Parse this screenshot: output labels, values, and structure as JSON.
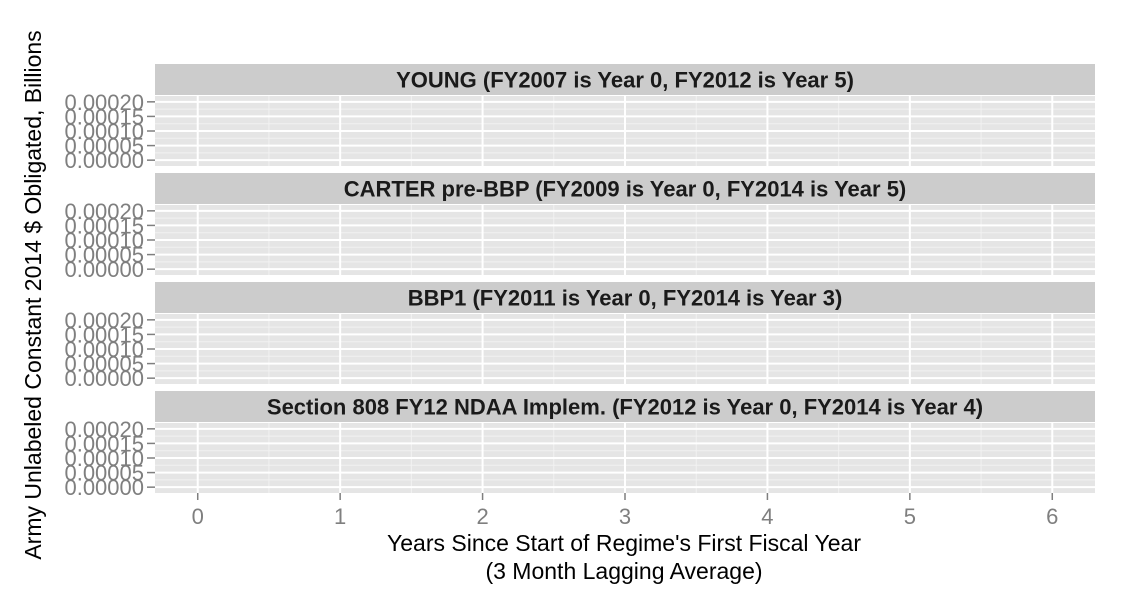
{
  "chart_data": {
    "type": "line",
    "title": "",
    "xlabel": "Years Since Start of Regime's First Fiscal Year",
    "xlabel_sub": "(3 Month Lagging Average)",
    "ylabel": "Army Unlabeled Constant 2014 $ Obligated, Billions",
    "xlim": [
      -0.3,
      6.3
    ],
    "ylim": [
      -2e-05,
      0.00022
    ],
    "x_ticks": [
      0,
      1,
      2,
      3,
      4,
      5,
      6
    ],
    "x_tick_labels": [
      "0",
      "1",
      "2",
      "3",
      "4",
      "5",
      "6"
    ],
    "y_ticks": [
      0.0,
      5e-05,
      0.0001,
      0.00015,
      0.0002
    ],
    "y_tick_labels": [
      "0.00000",
      "0.00005",
      "0.00010",
      "0.00015",
      "0.00020"
    ],
    "grid": true,
    "panel_background": "#e5e5e5",
    "strip_background": "#cccccc",
    "grid_color": "#ffffff",
    "facets": [
      {
        "label": "YOUNG (FY2007 is Year 0, FY2012 is Year 5)",
        "series": []
      },
      {
        "label": "CARTER pre-BBP (FY2009 is Year 0, FY2014 is Year 5)",
        "series": []
      },
      {
        "label": "BBP1 (FY2011 is Year 0, FY2014 is Year 3)",
        "series": []
      },
      {
        "label": "Section 808 FY12 NDAA Implem. (FY2012 is Year 0, FY2014 is Year 4)",
        "series": []
      }
    ]
  }
}
